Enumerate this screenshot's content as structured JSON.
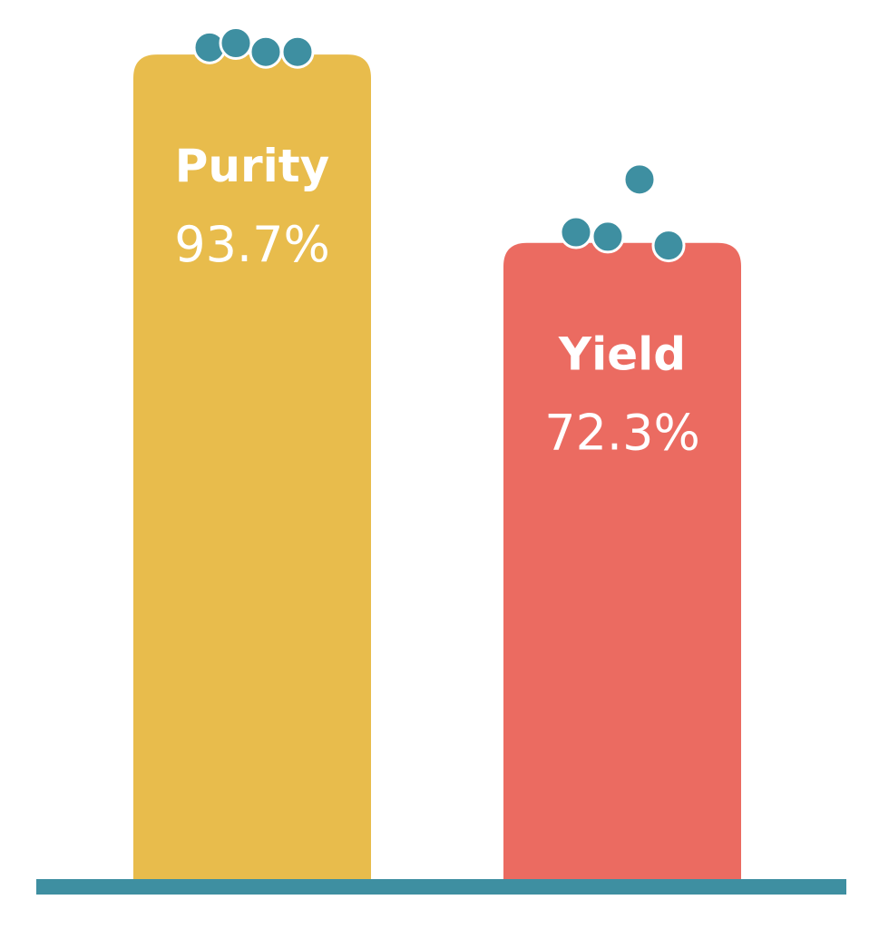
{
  "chart_data": {
    "type": "bar",
    "categories": [
      "Purity",
      "Yield"
    ],
    "values": [
      93.7,
      72.3
    ],
    "value_labels": [
      "93.7%",
      "72.3%"
    ],
    "colors": [
      "#E8BC4C",
      "#EB6B61"
    ],
    "point_color": "#3E8FA1",
    "baseline_color": "#3E8FA1",
    "points": [
      [
        94.5,
        95.0,
        94.0,
        94.0
      ],
      [
        73.5,
        73.0,
        72.0,
        79.5
      ]
    ],
    "ylim": [
      0,
      100
    ],
    "grid": false,
    "legend": "none"
  }
}
